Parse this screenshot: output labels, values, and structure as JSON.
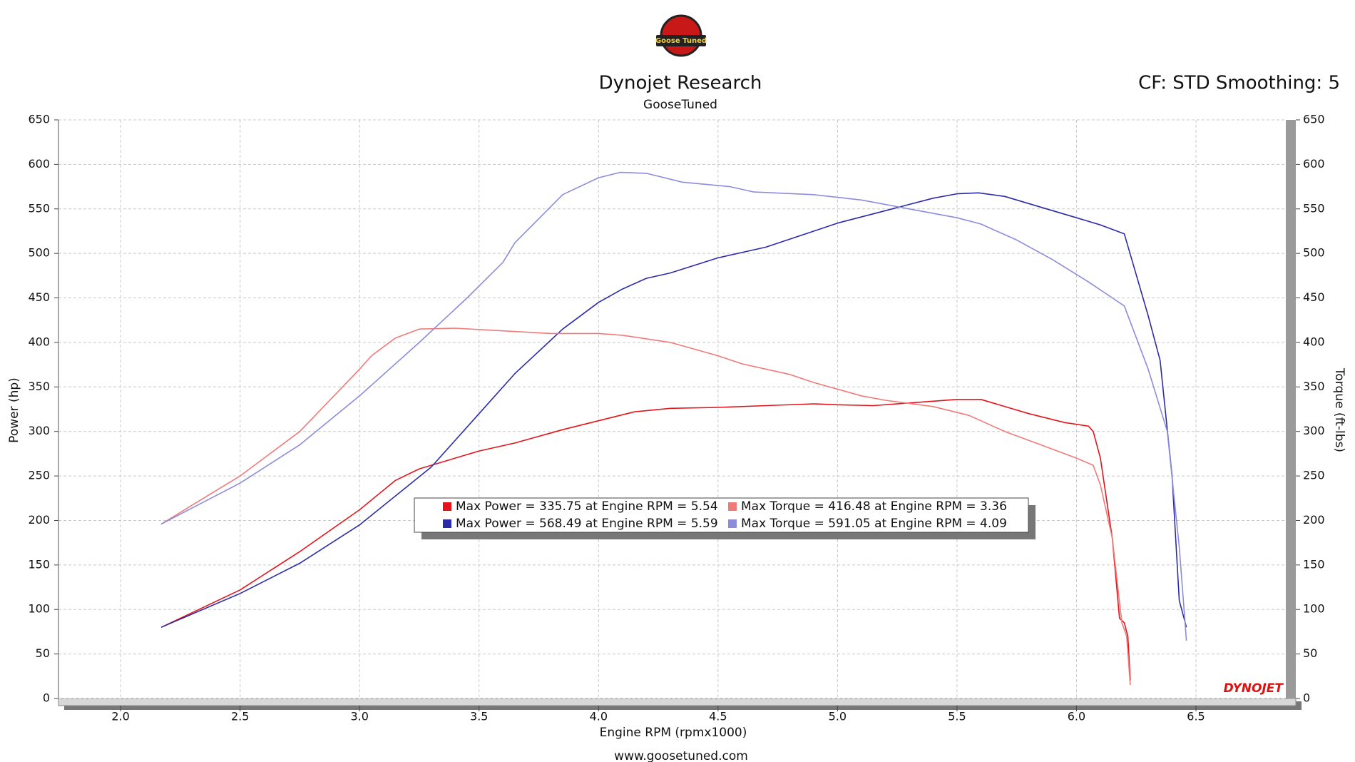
{
  "chart_data": {
    "type": "line",
    "logo": "Goose Tuned",
    "title": "Dynojet Research",
    "subtitle": "GooseTuned",
    "corner_note": "CF: STD Smoothing: 5",
    "x_label": "Engine RPM (rpmx1000)",
    "y_label": "Power (hp)",
    "y2_label": "Torque (ft-lbs)",
    "footer": "www.goosetuned.com",
    "watermark": "DYNOJET",
    "grid": true,
    "xlim": [
      1.74,
      6.876
    ],
    "xticks": [
      {
        "value": 2,
        "label": "2.0"
      },
      2.5,
      {
        "value": 3,
        "label": "3.0"
      },
      3.5,
      {
        "value": 4,
        "label": "4.0"
      },
      4.5,
      {
        "value": 5,
        "label": "5.0"
      },
      5.5,
      {
        "value": 6,
        "label": "6.0"
      },
      6.5
    ],
    "ylim": [
      0,
      650
    ],
    "yticks": [
      0,
      50,
      100,
      150,
      200,
      250,
      300,
      350,
      400,
      450,
      500,
      550,
      600,
      650
    ],
    "y2lim": [
      0,
      650
    ],
    "y2ticks": [
      0,
      50,
      100,
      150,
      200,
      250,
      300,
      350,
      400,
      450,
      500,
      550,
      600,
      650
    ],
    "series": [
      {
        "name": "Max Power = 335.75 at Engine RPM = 5.54",
        "color": "#e4141b",
        "axis": "y",
        "x": [
          2.17,
          2.5,
          2.75,
          3.0,
          3.15,
          3.25,
          3.5,
          3.65,
          3.85,
          4.0,
          4.15,
          4.3,
          4.5,
          4.7,
          4.9,
          5.0,
          5.15,
          5.3,
          5.5,
          5.6,
          5.8,
          5.95,
          6.05,
          6.07,
          6.1,
          6.15,
          6.18,
          6.2,
          6.215,
          6.225
        ],
        "values": [
          80,
          122,
          165,
          212,
          245,
          258,
          278,
          287,
          302,
          312,
          322,
          326,
          327,
          329,
          331,
          330,
          329,
          332,
          336,
          336,
          320,
          310,
          306,
          300,
          270,
          180,
          90,
          85,
          70,
          20
        ]
      },
      {
        "name": "Max Power = 568.49 at Engine RPM = 5.59",
        "color": "#2b2ba8",
        "axis": "y",
        "x": [
          2.17,
          2.5,
          2.75,
          3.0,
          3.3,
          3.5,
          3.65,
          3.85,
          4.0,
          4.1,
          4.2,
          4.3,
          4.5,
          4.7,
          4.9,
          5.0,
          5.2,
          5.4,
          5.5,
          5.59,
          5.7,
          5.85,
          6.0,
          6.1,
          6.2,
          6.3,
          6.35,
          6.4,
          6.43,
          6.45,
          6.46
        ],
        "values": [
          80,
          118,
          152,
          195,
          260,
          320,
          365,
          415,
          445,
          460,
          472,
          478,
          495,
          507,
          525,
          534,
          548,
          562,
          567,
          568,
          564,
          552,
          540,
          532,
          522,
          430,
          380,
          250,
          110,
          90,
          80
        ]
      },
      {
        "name": "Max Torque = 416.48 at Engine RPM = 3.36",
        "color": "#f07a7a",
        "axis": "y2",
        "x": [
          2.17,
          2.5,
          2.75,
          3.0,
          3.05,
          3.15,
          3.25,
          3.4,
          3.6,
          3.8,
          4.0,
          4.1,
          4.3,
          4.5,
          4.6,
          4.8,
          4.9,
          5.1,
          5.2,
          5.4,
          5.55,
          5.7,
          5.85,
          6.0,
          6.07,
          6.1,
          6.15,
          6.19,
          6.21,
          6.225
        ],
        "values": [
          196,
          250,
          300,
          370,
          385,
          405,
          415,
          416,
          413,
          410,
          410,
          408,
          400,
          385,
          376,
          364,
          355,
          340,
          335,
          328,
          318,
          300,
          285,
          270,
          262,
          240,
          180,
          85,
          70,
          15
        ]
      },
      {
        "name": "Max Torque = 591.05 at Engine RPM = 4.09",
        "color": "#8c8cdc",
        "axis": "y2",
        "x": [
          2.17,
          2.5,
          2.75,
          3.0,
          3.25,
          3.45,
          3.6,
          3.65,
          3.85,
          4.0,
          4.09,
          4.2,
          4.35,
          4.55,
          4.65,
          4.9,
          5.1,
          5.3,
          5.5,
          5.6,
          5.75,
          5.9,
          6.05,
          6.15,
          6.2,
          6.3,
          6.38,
          6.43,
          6.45,
          6.46
        ],
        "values": [
          196,
          242,
          285,
          340,
          400,
          450,
          490,
          512,
          566,
          585,
          591,
          590,
          580,
          575,
          569,
          566,
          560,
          550,
          540,
          533,
          515,
          493,
          468,
          450,
          441,
          370,
          300,
          170,
          100,
          65
        ]
      }
    ]
  }
}
